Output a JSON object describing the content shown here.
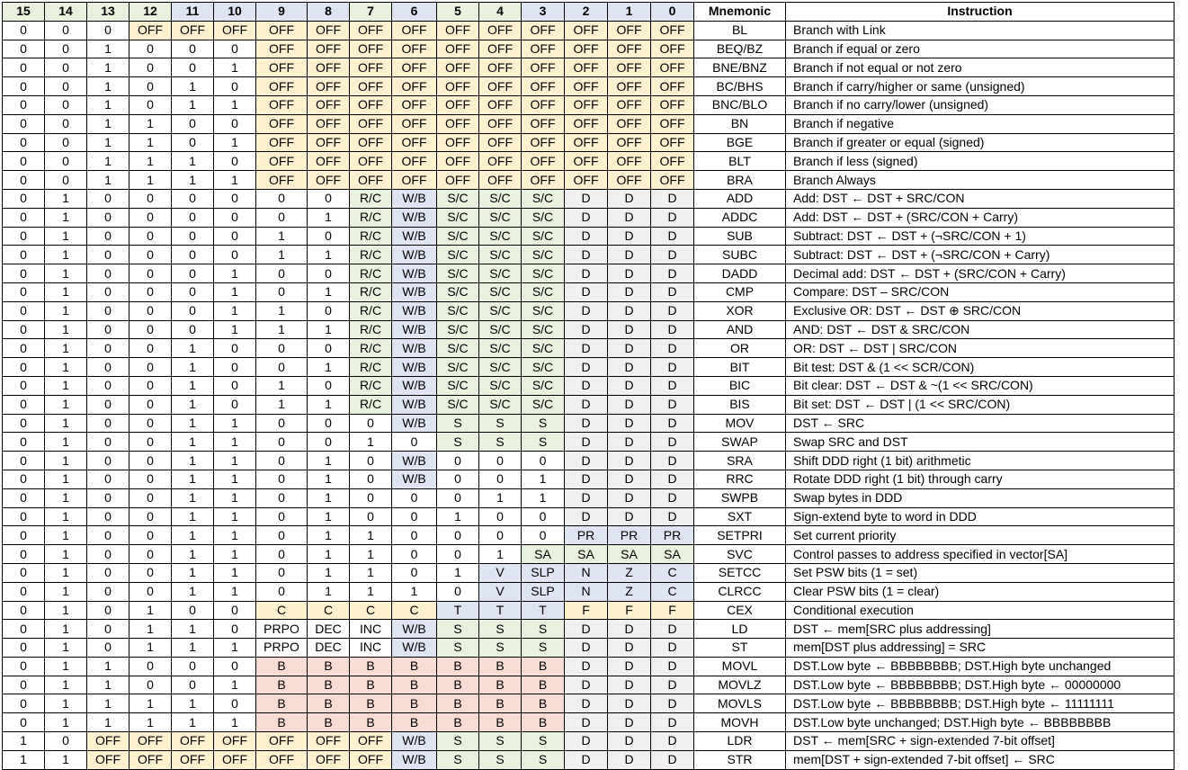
{
  "headers": [
    "15",
    "14",
    "13",
    "12",
    "11",
    "10",
    "9",
    "8",
    "7",
    "6",
    "5",
    "4",
    "3",
    "2",
    "1",
    "0",
    "Mnemonic",
    "Instruction"
  ],
  "header_colors": [
    "g",
    "g",
    "g",
    "g",
    "b",
    "b",
    "b",
    "b",
    "g",
    "b",
    "g",
    "g",
    "b",
    "b",
    "b",
    "b",
    "w",
    "w"
  ],
  "colors": {
    "o": "#fdf0cf",
    "g": "#e8f1de",
    "b": "#dfe4f3",
    "r": "#f8dcd3",
    "x": "#efefef",
    "w": "#ffffff"
  },
  "rows": [
    {
      "bits": [
        "0",
        "0",
        "0",
        "OFF",
        "OFF",
        "OFF",
        "OFF",
        "OFF",
        "OFF",
        "OFF",
        "OFF",
        "OFF",
        "OFF",
        "OFF",
        "OFF",
        "OFF"
      ],
      "colors": "wwwooooooooooooo",
      "mnemonic": "BL",
      "instruction": "Branch with Link"
    },
    {
      "bits": [
        "0",
        "0",
        "1",
        "0",
        "0",
        "0",
        "OFF",
        "OFF",
        "OFF",
        "OFF",
        "OFF",
        "OFF",
        "OFF",
        "OFF",
        "OFF",
        "OFF"
      ],
      "colors": "wwwwwwoooooooooo",
      "mnemonic": "BEQ/BZ",
      "instruction": "Branch if equal or zero"
    },
    {
      "bits": [
        "0",
        "0",
        "1",
        "0",
        "0",
        "1",
        "OFF",
        "OFF",
        "OFF",
        "OFF",
        "OFF",
        "OFF",
        "OFF",
        "OFF",
        "OFF",
        "OFF"
      ],
      "colors": "wwwwwwoooooooooo",
      "mnemonic": "BNE/BNZ",
      "instruction": "Branch if not equal or not zero"
    },
    {
      "bits": [
        "0",
        "0",
        "1",
        "0",
        "1",
        "0",
        "OFF",
        "OFF",
        "OFF",
        "OFF",
        "OFF",
        "OFF",
        "OFF",
        "OFF",
        "OFF",
        "OFF"
      ],
      "colors": "wwwwwwoooooooooo",
      "mnemonic": "BC/BHS",
      "instruction": "Branch if carry/higher or same (unsigned)"
    },
    {
      "bits": [
        "0",
        "0",
        "1",
        "0",
        "1",
        "1",
        "OFF",
        "OFF",
        "OFF",
        "OFF",
        "OFF",
        "OFF",
        "OFF",
        "OFF",
        "OFF",
        "OFF"
      ],
      "colors": "wwwwwwoooooooooo",
      "mnemonic": "BNC/BLO",
      "instruction": "Branch if no carry/lower (unsigned)"
    },
    {
      "bits": [
        "0",
        "0",
        "1",
        "1",
        "0",
        "0",
        "OFF",
        "OFF",
        "OFF",
        "OFF",
        "OFF",
        "OFF",
        "OFF",
        "OFF",
        "OFF",
        "OFF"
      ],
      "colors": "wwwwwwoooooooooo",
      "mnemonic": "BN",
      "instruction": "Branch if negative"
    },
    {
      "bits": [
        "0",
        "0",
        "1",
        "1",
        "0",
        "1",
        "OFF",
        "OFF",
        "OFF",
        "OFF",
        "OFF",
        "OFF",
        "OFF",
        "OFF",
        "OFF",
        "OFF"
      ],
      "colors": "wwwwwwoooooooooo",
      "mnemonic": "BGE",
      "instruction": "Branch if greater or equal (signed)"
    },
    {
      "bits": [
        "0",
        "0",
        "1",
        "1",
        "1",
        "0",
        "OFF",
        "OFF",
        "OFF",
        "OFF",
        "OFF",
        "OFF",
        "OFF",
        "OFF",
        "OFF",
        "OFF"
      ],
      "colors": "wwwwwwoooooooooo",
      "mnemonic": "BLT",
      "instruction": "Branch if less (signed)"
    },
    {
      "bits": [
        "0",
        "0",
        "1",
        "1",
        "1",
        "1",
        "OFF",
        "OFF",
        "OFF",
        "OFF",
        "OFF",
        "OFF",
        "OFF",
        "OFF",
        "OFF",
        "OFF"
      ],
      "colors": "wwwwwwoooooooooo",
      "mnemonic": "BRA",
      "instruction": "Branch Always"
    },
    {
      "bits": [
        "0",
        "1",
        "0",
        "0",
        "0",
        "0",
        "0",
        "0",
        "R/C",
        "W/B",
        "S/C",
        "S/C",
        "S/C",
        "D",
        "D",
        "D"
      ],
      "colors": "wwwwwwwwgbgggxxx",
      "mnemonic": "ADD",
      "instruction": "Add: DST ← DST + SRC/CON"
    },
    {
      "bits": [
        "0",
        "1",
        "0",
        "0",
        "0",
        "0",
        "0",
        "1",
        "R/C",
        "W/B",
        "S/C",
        "S/C",
        "S/C",
        "D",
        "D",
        "D"
      ],
      "colors": "wwwwwwwwgbgggxxx",
      "mnemonic": "ADDC",
      "instruction": "Add: DST ← DST + (SRC/CON + Carry)"
    },
    {
      "bits": [
        "0",
        "1",
        "0",
        "0",
        "0",
        "0",
        "1",
        "0",
        "R/C",
        "W/B",
        "S/C",
        "S/C",
        "S/C",
        "D",
        "D",
        "D"
      ],
      "colors": "wwwwwwwwgbgggxxx",
      "mnemonic": "SUB",
      "instruction": "Subtract: DST ← DST + (¬SRC/CON + 1)"
    },
    {
      "bits": [
        "0",
        "1",
        "0",
        "0",
        "0",
        "0",
        "1",
        "1",
        "R/C",
        "W/B",
        "S/C",
        "S/C",
        "S/C",
        "D",
        "D",
        "D"
      ],
      "colors": "wwwwwwwwgbgggxxx",
      "mnemonic": "SUBC",
      "instruction": "Subtract: DST ← DST + (¬SRC/CON + Carry)"
    },
    {
      "bits": [
        "0",
        "1",
        "0",
        "0",
        "0",
        "1",
        "0",
        "0",
        "R/C",
        "W/B",
        "S/C",
        "S/C",
        "S/C",
        "D",
        "D",
        "D"
      ],
      "colors": "wwwwwwwwgbgggxxx",
      "mnemonic": "DADD",
      "instruction": "Decimal add: DST ← DST + (SRC/CON + Carry)"
    },
    {
      "bits": [
        "0",
        "1",
        "0",
        "0",
        "0",
        "1",
        "0",
        "1",
        "R/C",
        "W/B",
        "S/C",
        "S/C",
        "S/C",
        "D",
        "D",
        "D"
      ],
      "colors": "wwwwwwwwgbgggxxx",
      "mnemonic": "CMP",
      "instruction": "Compare: DST – SRC/CON"
    },
    {
      "bits": [
        "0",
        "1",
        "0",
        "0",
        "0",
        "1",
        "1",
        "0",
        "R/C",
        "W/B",
        "S/C",
        "S/C",
        "S/C",
        "D",
        "D",
        "D"
      ],
      "colors": "wwwwwwwwgbgggxxx",
      "mnemonic": "XOR",
      "instruction": "Exclusive OR: DST ← DST ⊕ SRC/CON"
    },
    {
      "bits": [
        "0",
        "1",
        "0",
        "0",
        "0",
        "1",
        "1",
        "1",
        "R/C",
        "W/B",
        "S/C",
        "S/C",
        "S/C",
        "D",
        "D",
        "D"
      ],
      "colors": "wwwwwwwwgbgggxxx",
      "mnemonic": "AND",
      "instruction": "AND:  DST ← DST & SRC/CON"
    },
    {
      "bits": [
        "0",
        "1",
        "0",
        "0",
        "1",
        "0",
        "0",
        "0",
        "R/C",
        "W/B",
        "S/C",
        "S/C",
        "S/C",
        "D",
        "D",
        "D"
      ],
      "colors": "wwwwwwwwgbgggxxx",
      "mnemonic": "OR",
      "instruction": "OR:  DST ← DST | SRC/CON"
    },
    {
      "bits": [
        "0",
        "1",
        "0",
        "0",
        "1",
        "0",
        "0",
        "1",
        "R/C",
        "W/B",
        "S/C",
        "S/C",
        "S/C",
        "D",
        "D",
        "D"
      ],
      "colors": "wwwwwwwwgbgggxxx",
      "mnemonic": "BIT",
      "instruction": "Bit test: DST & (1 << SCR/CON)"
    },
    {
      "bits": [
        "0",
        "1",
        "0",
        "0",
        "1",
        "0",
        "1",
        "0",
        "R/C",
        "W/B",
        "S/C",
        "S/C",
        "S/C",
        "D",
        "D",
        "D"
      ],
      "colors": "wwwwwwwwgbgggxxx",
      "mnemonic": "BIC",
      "instruction": "Bit clear: DST ← DST & ~(1 << SRC/CON)"
    },
    {
      "bits": [
        "0",
        "1",
        "0",
        "0",
        "1",
        "0",
        "1",
        "1",
        "R/C",
        "W/B",
        "S/C",
        "S/C",
        "S/C",
        "D",
        "D",
        "D"
      ],
      "colors": "wwwwwwwwgbgggxxx",
      "mnemonic": "BIS",
      "instruction": "Bit set: DST ← DST | (1 << SRC/CON)"
    },
    {
      "bits": [
        "0",
        "1",
        "0",
        "0",
        "1",
        "1",
        "0",
        "0",
        "0",
        "W/B",
        "S",
        "S",
        "S",
        "D",
        "D",
        "D"
      ],
      "colors": "wwwwwwwwwbgggxxx",
      "mnemonic": "MOV",
      "instruction": "DST ← SRC"
    },
    {
      "bits": [
        "0",
        "1",
        "0",
        "0",
        "1",
        "1",
        "0",
        "0",
        "1",
        "0",
        "S",
        "S",
        "S",
        "D",
        "D",
        "D"
      ],
      "colors": "wwwwwwwwwwgggxxx",
      "mnemonic": "SWAP",
      "instruction": "Swap SRC and DST"
    },
    {
      "bits": [
        "0",
        "1",
        "0",
        "0",
        "1",
        "1",
        "0",
        "1",
        "0",
        "W/B",
        "0",
        "0",
        "0",
        "D",
        "D",
        "D"
      ],
      "colors": "wwwwwwwwwbwwwxxx",
      "mnemonic": "SRA",
      "instruction": "Shift DDD right (1 bit) arithmetic"
    },
    {
      "bits": [
        "0",
        "1",
        "0",
        "0",
        "1",
        "1",
        "0",
        "1",
        "0",
        "W/B",
        "0",
        "0",
        "1",
        "D",
        "D",
        "D"
      ],
      "colors": "wwwwwwwwwbwwwxxx",
      "mnemonic": "RRC",
      "instruction": "Rotate DDD right (1 bit) through carry"
    },
    {
      "bits": [
        "0",
        "1",
        "0",
        "0",
        "1",
        "1",
        "0",
        "1",
        "0",
        "0",
        "0",
        "1",
        "1",
        "D",
        "D",
        "D"
      ],
      "colors": "wwwwwwwwwwwwwxxx",
      "mnemonic": "SWPB",
      "instruction": "Swap bytes in DDD"
    },
    {
      "bits": [
        "0",
        "1",
        "0",
        "0",
        "1",
        "1",
        "0",
        "1",
        "0",
        "0",
        "1",
        "0",
        "0",
        "D",
        "D",
        "D"
      ],
      "colors": "wwwwwwwwwwwwwxxx",
      "mnemonic": "SXT",
      "instruction": "Sign-extend byte to word in DDD"
    },
    {
      "bits": [
        "0",
        "1",
        "0",
        "0",
        "1",
        "1",
        "0",
        "1",
        "1",
        "0",
        "0",
        "0",
        "0",
        "PR",
        "PR",
        "PR"
      ],
      "colors": "wwwwwwwwwwwwwbbb",
      "mnemonic": "SETPRI",
      "instruction": "Set current priority"
    },
    {
      "bits": [
        "0",
        "1",
        "0",
        "0",
        "1",
        "1",
        "0",
        "1",
        "1",
        "0",
        "0",
        "1",
        "SA",
        "SA",
        "SA",
        "SA"
      ],
      "colors": "wwwwwwwwwwwwgggg",
      "mnemonic": "SVC",
      "instruction": "Control passes to address specified in vector[SA]"
    },
    {
      "bits": [
        "0",
        "1",
        "0",
        "0",
        "1",
        "1",
        "0",
        "1",
        "1",
        "0",
        "1",
        "V",
        "SLP",
        "N",
        "Z",
        "C"
      ],
      "colors": "wwwwwwwwwwwbbbbb",
      "mnemonic": "SETCC",
      "instruction": "Set PSW bits (1 = set)"
    },
    {
      "bits": [
        "0",
        "1",
        "0",
        "0",
        "1",
        "1",
        "0",
        "1",
        "1",
        "1",
        "0",
        "V",
        "SLP",
        "N",
        "Z",
        "C"
      ],
      "colors": "wwwwwwwwwwwbbbbb",
      "mnemonic": "CLRCC",
      "instruction": "Clear PSW bits (1 = clear)"
    },
    {
      "bits": [
        "0",
        "1",
        "0",
        "1",
        "0",
        "0",
        "C",
        "C",
        "C",
        "C",
        "T",
        "T",
        "T",
        "F",
        "F",
        "F"
      ],
      "colors": "wwwwwwoooobbbooo",
      "mnemonic": "CEX",
      "instruction": "Conditional execution"
    },
    {
      "bits": [
        "0",
        "1",
        "0",
        "1",
        "1",
        "0",
        "PRPO",
        "DEC",
        "INC",
        "W/B",
        "S",
        "S",
        "S",
        "D",
        "D",
        "D"
      ],
      "colors": "wwwwwwwwwbgggxxx",
      "mnemonic": "LD",
      "instruction": "DST ← mem[SRC plus addressing]"
    },
    {
      "bits": [
        "0",
        "1",
        "0",
        "1",
        "1",
        "1",
        "PRPO",
        "DEC",
        "INC",
        "W/B",
        "S",
        "S",
        "S",
        "D",
        "D",
        "D"
      ],
      "colors": "wwwwwwwwwbgggxxx",
      "mnemonic": "ST",
      "instruction": "mem[DST plus addressing] = SRC"
    },
    {
      "bits": [
        "0",
        "1",
        "1",
        "0",
        "0",
        "0",
        "B",
        "B",
        "B",
        "B",
        "B",
        "B",
        "B",
        "D",
        "D",
        "D"
      ],
      "colors": "wwwwwwrrrrrrrxxx",
      "mnemonic": "MOVL",
      "instruction": "DST.Low byte ← BBBBBBBB; DST.High byte unchanged"
    },
    {
      "bits": [
        "0",
        "1",
        "1",
        "0",
        "0",
        "1",
        "B",
        "B",
        "B",
        "B",
        "B",
        "B",
        "B",
        "D",
        "D",
        "D"
      ],
      "colors": "wwwwwwrrrrrrrxxx",
      "mnemonic": "MOVLZ",
      "instruction": "DST.Low byte ← BBBBBBBB; DST.High byte ← 00000000"
    },
    {
      "bits": [
        "0",
        "1",
        "1",
        "1",
        "1",
        "0",
        "B",
        "B",
        "B",
        "B",
        "B",
        "B",
        "B",
        "D",
        "D",
        "D"
      ],
      "colors": "wwwwwwrrrrrrrxxx",
      "mnemonic": "MOVLS",
      "instruction": "DST.Low byte ← BBBBBBBB; DST.High byte ← 11111111"
    },
    {
      "bits": [
        "0",
        "1",
        "1",
        "1",
        "1",
        "1",
        "B",
        "B",
        "B",
        "B",
        "B",
        "B",
        "B",
        "D",
        "D",
        "D"
      ],
      "colors": "wwwwwwrrrrrrrxxx",
      "mnemonic": "MOVH",
      "instruction": "DST.Low byte unchanged; DST.High byte ← BBBBBBBB"
    },
    {
      "bits": [
        "1",
        "0",
        "OFF",
        "OFF",
        "OFF",
        "OFF",
        "OFF",
        "OFF",
        "OFF",
        "W/B",
        "S",
        "S",
        "S",
        "D",
        "D",
        "D"
      ],
      "colors": "wwooooooobgggxxx",
      "mnemonic": "LDR",
      "instruction": "DST ← mem[SRC + sign-extended 7-bit offset]"
    },
    {
      "bits": [
        "1",
        "1",
        "OFF",
        "OFF",
        "OFF",
        "OFF",
        "OFF",
        "OFF",
        "OFF",
        "W/B",
        "S",
        "S",
        "S",
        "D",
        "D",
        "D"
      ],
      "colors": "wwooooooobgggxxx",
      "mnemonic": "STR",
      "instruction": "mem[DST + sign-extended 7-bit offset] ← SRC"
    }
  ]
}
